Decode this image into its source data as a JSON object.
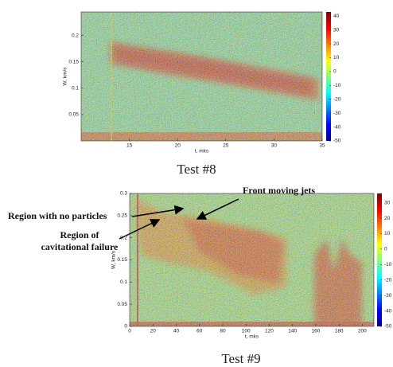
{
  "chart_data": [
    {
      "type": "heatmap",
      "caption": "Test #8",
      "xlabel": "t, mks",
      "ylabel": "W, km/s",
      "xlim": [
        10,
        35
      ],
      "xticks": [
        15,
        20,
        25,
        30,
        35
      ],
      "ylim": [
        0,
        0.245
      ],
      "yticks": [
        0.05,
        0.1,
        0.15,
        0.2
      ],
      "clim": [
        -50,
        43
      ],
      "cticks": [
        40,
        30,
        20,
        10,
        0,
        -10,
        -20,
        -30,
        -40,
        -50
      ]
    },
    {
      "type": "heatmap",
      "caption": "Test #9",
      "xlabel": "t, mks",
      "ylabel": "W, km/s",
      "xlim": [
        0,
        210
      ],
      "xticks": [
        0,
        20,
        40,
        60,
        80,
        100,
        120,
        140,
        160,
        180,
        200
      ],
      "ylim": [
        0,
        0.3
      ],
      "yticks": [
        0,
        0.05,
        0.1,
        0.15,
        0.2,
        0.25,
        0.3
      ],
      "clim": [
        -50,
        36
      ],
      "cticks": [
        30,
        20,
        10,
        0,
        -10,
        -20,
        -30,
        -40,
        -50
      ],
      "annotations": [
        [
          "Front moving jets"
        ],
        [
          "Region with no particles"
        ],
        [
          "Region of",
          "cavitational failure"
        ]
      ]
    }
  ]
}
